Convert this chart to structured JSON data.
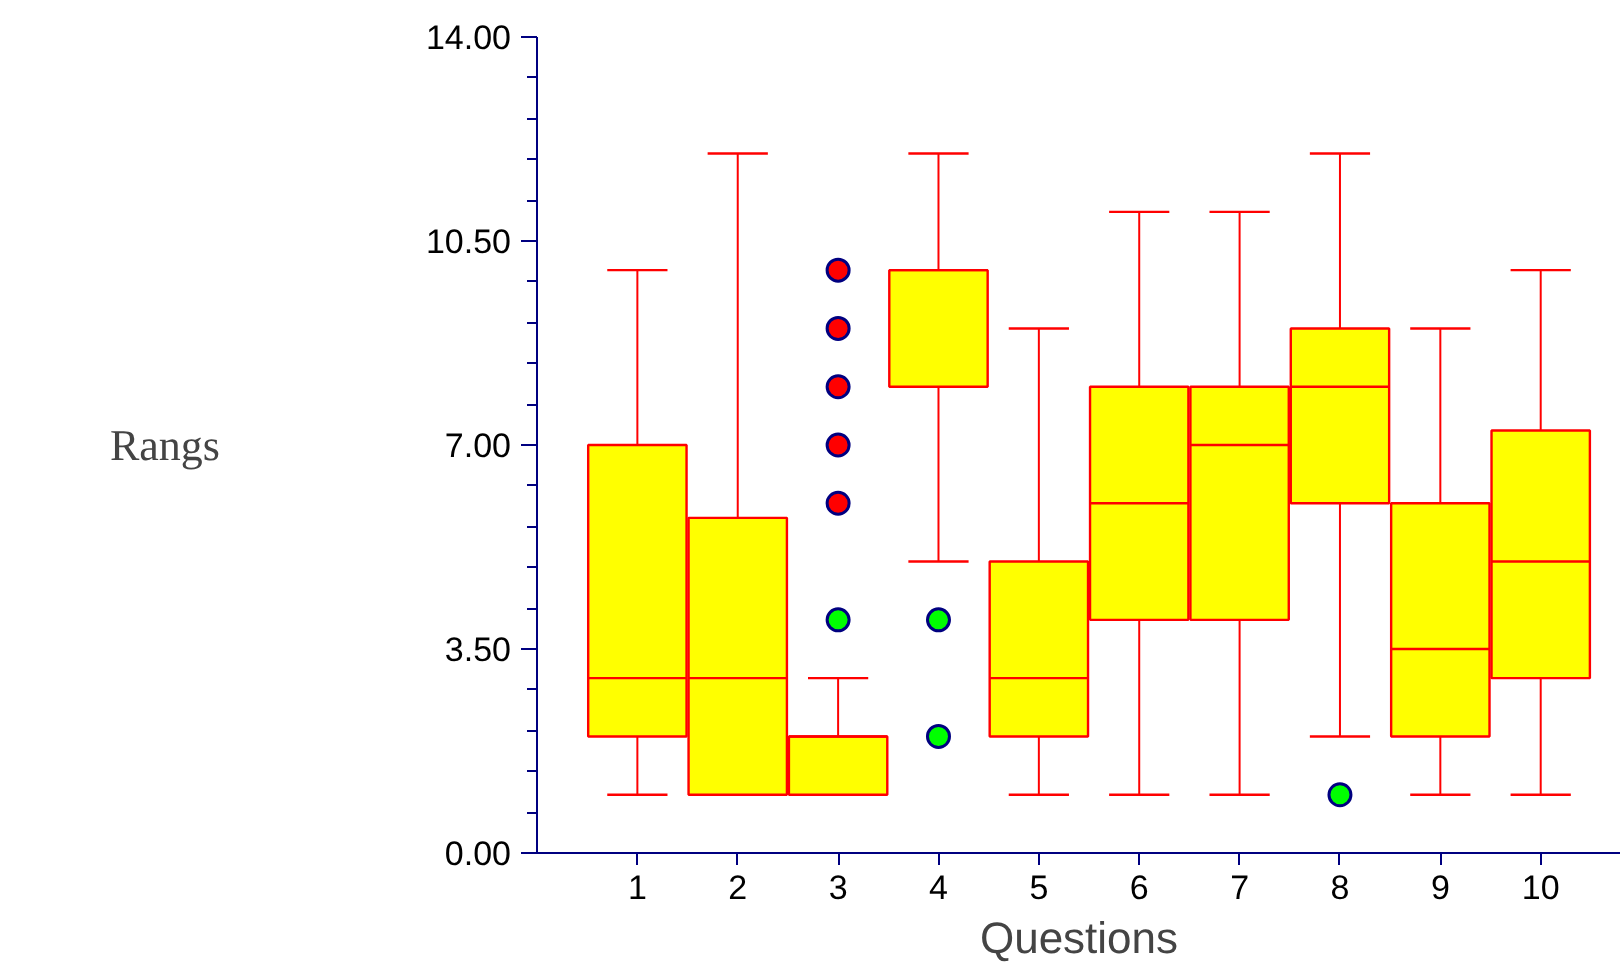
{
  "chart_data": {
    "type": "box",
    "xlabel": "Questions",
    "ylabel": "Rangs",
    "categories": [
      "1",
      "2",
      "3",
      "4",
      "5",
      "6",
      "7",
      "8",
      "9",
      "10"
    ],
    "ylim": [
      0,
      14
    ],
    "yticks": [
      {
        "value": 0,
        "label": "0.00"
      },
      {
        "value": 3.5,
        "label": "3.50"
      },
      {
        "value": 7,
        "label": "7.00"
      },
      {
        "value": 10.5,
        "label": "10.50"
      },
      {
        "value": 14,
        "label": "14.00"
      }
    ],
    "grid": false,
    "series": [
      {
        "type": "box",
        "color": "#ffff00",
        "boxes": [
          {
            "low": 1,
            "q1": 2,
            "median": 3,
            "q3": 7,
            "high": 10
          },
          {
            "low": 1,
            "q1": 1,
            "median": 3,
            "q3": 5.75,
            "high": 12
          },
          {
            "low": 1,
            "q1": 1,
            "median": 2,
            "q3": 2,
            "high": 3
          },
          {
            "low": 5,
            "q1": 8,
            "median": 10,
            "q3": 10,
            "high": 12
          },
          {
            "low": 1,
            "q1": 2,
            "median": 3,
            "q3": 5,
            "high": 9
          },
          {
            "low": 1,
            "q1": 4,
            "median": 6,
            "q3": 8,
            "high": 11
          },
          {
            "low": 1,
            "q1": 4,
            "median": 7,
            "q3": 8,
            "high": 11
          },
          {
            "low": 2,
            "q1": 6,
            "median": 8,
            "q3": 9,
            "high": 12
          },
          {
            "low": 1,
            "q1": 2,
            "median": 3.5,
            "q3": 6,
            "high": 9
          },
          {
            "low": 1,
            "q1": 3,
            "median": 5,
            "q3": 7.25,
            "high": 10
          }
        ]
      },
      {
        "type": "scatter",
        "color": "#ff0000",
        "x": [
          "3",
          "3",
          "3",
          "3",
          "3"
        ],
        "values": [
          10,
          9,
          8,
          7,
          6
        ]
      },
      {
        "type": "scatter",
        "color": "#00ff00",
        "x": [
          "3",
          "4",
          "4",
          "8"
        ],
        "values": [
          4,
          4,
          2,
          1
        ]
      }
    ]
  }
}
